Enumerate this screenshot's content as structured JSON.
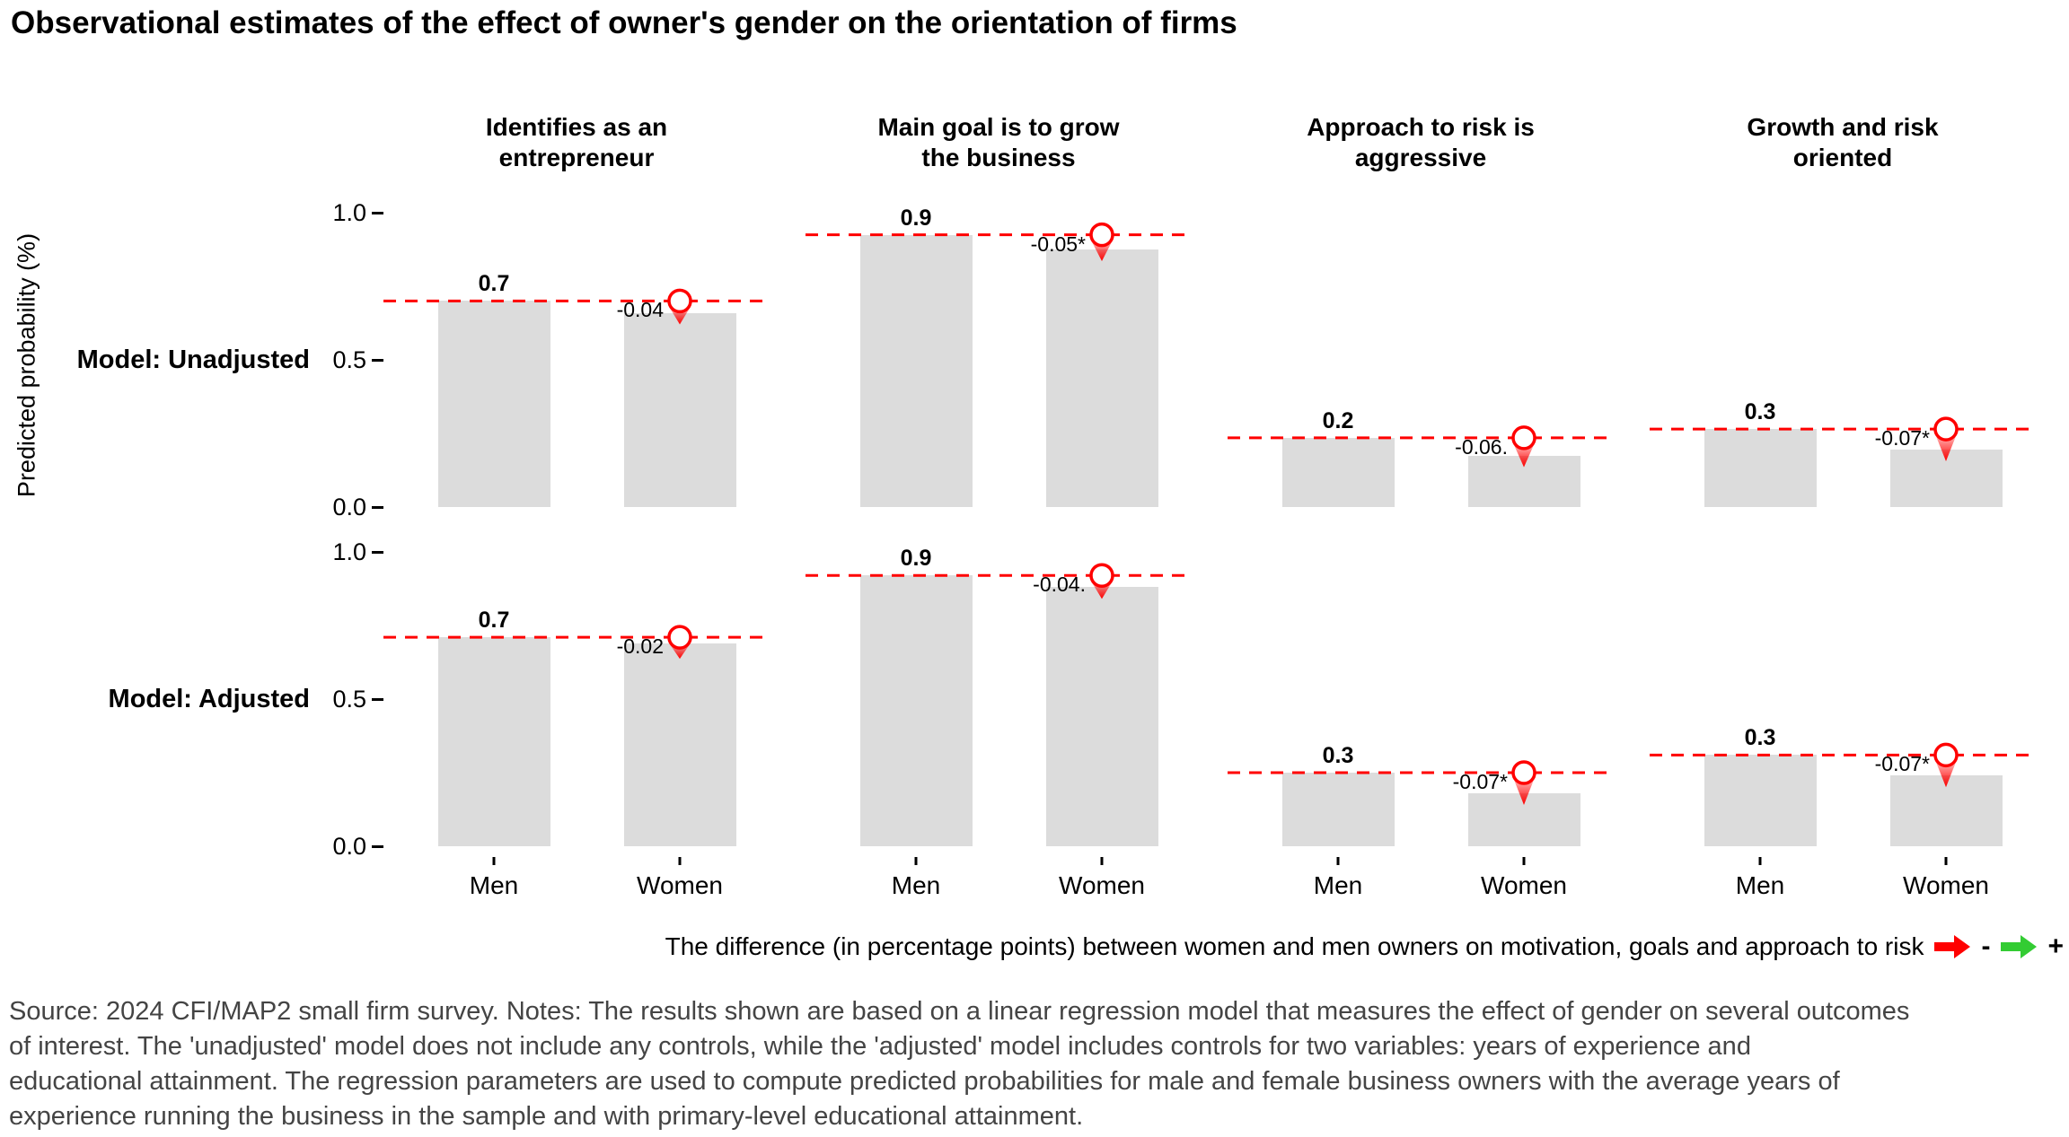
{
  "title": "Observational estimates of the effect of owner's gender on the orientation of firms",
  "y_axis": {
    "label": "Predicted probability (%)",
    "ticks": [
      "1.0",
      "0.5",
      "0.0"
    ]
  },
  "x_axis": {
    "categories": [
      "Men",
      "Women"
    ]
  },
  "rows": [
    {
      "label": "Model: Unadjusted"
    },
    {
      "label": "Model: Adjusted"
    }
  ],
  "facets": [
    {
      "line1": "Identifies as an",
      "line2": "entrepreneur"
    },
    {
      "line1": "Main goal is to grow",
      "line2": "the business"
    },
    {
      "line1": "Approach to risk is",
      "line2": "aggressive"
    },
    {
      "line1": "Growth and risk",
      "line2": "oriented"
    }
  ],
  "chart_data": {
    "type": "bar",
    "title": "Observational estimates of the effect of owner's gender on the orientation of firms",
    "ylabel": "Predicted probability (%)",
    "ylim": [
      0,
      1
    ],
    "yticks": [
      0.0,
      0.5,
      1.0
    ],
    "categories": [
      "Men",
      "Women"
    ],
    "facet_columns": [
      "Identifies as an entrepreneur",
      "Main goal is to grow the business",
      "Approach to risk is aggressive",
      "Growth and risk oriented"
    ],
    "facet_rows": [
      "Model: Unadjusted",
      "Model: Adjusted"
    ],
    "reference_line": "dashed red line at men's predicted probability",
    "legend_position": "bottom caption",
    "grid": false,
    "panels": [
      {
        "row": "Model: Unadjusted",
        "facet": "Identifies as an entrepreneur",
        "men_value": 0.7,
        "women_value": 0.66,
        "men_label": "0.7",
        "diff_label": "-0.04"
      },
      {
        "row": "Model: Unadjusted",
        "facet": "Main goal is to grow the business",
        "men_value": 0.925,
        "women_value": 0.875,
        "men_label": "0.9",
        "diff_label": "-0.05*"
      },
      {
        "row": "Model: Unadjusted",
        "facet": "Approach to risk is aggressive",
        "men_value": 0.235,
        "women_value": 0.175,
        "men_label": "0.2",
        "diff_label": "-0.06."
      },
      {
        "row": "Model: Unadjusted",
        "facet": "Growth and risk oriented",
        "men_value": 0.265,
        "women_value": 0.195,
        "men_label": "0.3",
        "diff_label": "-0.07*"
      },
      {
        "row": "Model: Adjusted",
        "facet": "Identifies as an entrepreneur",
        "men_value": 0.71,
        "women_value": 0.69,
        "men_label": "0.7",
        "diff_label": "-0.02"
      },
      {
        "row": "Model: Adjusted",
        "facet": "Main goal is to grow the business",
        "men_value": 0.92,
        "women_value": 0.88,
        "men_label": "0.9",
        "diff_label": "-0.04."
      },
      {
        "row": "Model: Adjusted",
        "facet": "Approach to risk is aggressive",
        "men_value": 0.25,
        "women_value": 0.18,
        "men_label": "0.3",
        "diff_label": "-0.07*"
      },
      {
        "row": "Model: Adjusted",
        "facet": "Growth and risk oriented",
        "men_value": 0.31,
        "women_value": 0.24,
        "men_label": "0.3",
        "diff_label": "-0.07*"
      }
    ]
  },
  "caption": {
    "text": "The difference (in percentage points) between women and men owners on motivation, goals and approach to risk",
    "minus": "-",
    "plus": "+"
  },
  "notes_lines": [
    "Source: 2024 CFI/MAP2 small firm survey. Notes: The results shown are based on a linear regression model that measures the effect of gender on several outcomes",
    "of interest. The 'unadjusted' model does not include any controls, while the 'adjusted' model includes controls for two variables: years of experience and",
    "educational attainment. The regression parameters are used to compute predicted probabilities for male and female business owners with the average years of",
    "experience running the business in the sample and with primary-level educational attainment."
  ],
  "colors": {
    "bar": "#DCDCDC",
    "reference_line": "#FF0000",
    "marker": "#FF0000",
    "negative_arrow": "#FF0000",
    "positive_arrow": "#33CC33",
    "notes_text": "#444444"
  }
}
